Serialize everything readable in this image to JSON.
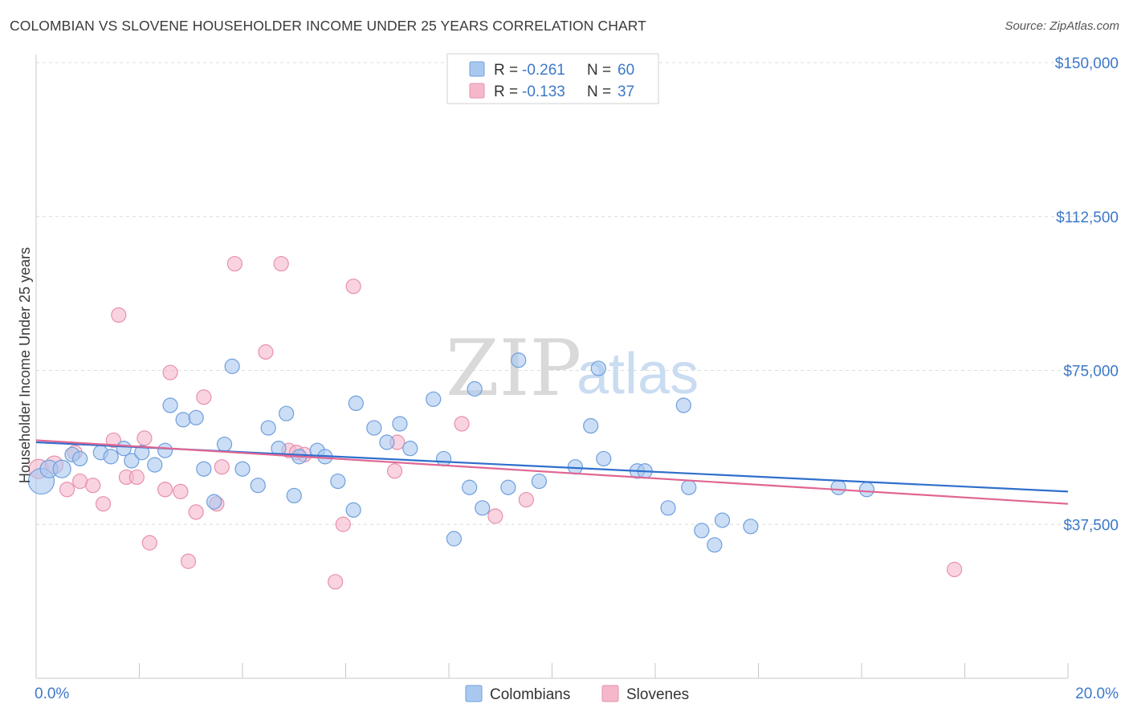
{
  "header": {
    "title": "COLOMBIAN VS SLOVENE HOUSEHOLDER INCOME UNDER 25 YEARS CORRELATION CHART",
    "source": "Source: ZipAtlas.com"
  },
  "watermark": {
    "zip": "ZIP",
    "atlas": "atlas"
  },
  "legend": {
    "rows": [
      {
        "r_label": "R =",
        "r_value": "-0.261",
        "n_label": "N =",
        "n_value": "60",
        "color": "#a9c8f0"
      },
      {
        "r_label": "R =",
        "r_value": "-0.133",
        "n_label": "N =",
        "n_value": "37",
        "color": "#f5b8cb"
      }
    ]
  },
  "bottom_legend": {
    "items": [
      "Colombians",
      "Slovenes"
    ]
  },
  "colors": {
    "blue_fill": "#a9c8f0",
    "blue_stroke": "#6f9fdc",
    "blue_line": "#2f6fcc",
    "pink_fill": "#f5b8cb",
    "pink_stroke": "#e890ab",
    "pink_line": "#e06693",
    "axis_text": "#3d78c9"
  },
  "chart_data": {
    "type": "scatter",
    "title": "COLOMBIAN VS SLOVENE HOUSEHOLDER INCOME UNDER 25 YEARS CORRELATION CHART",
    "xlabel": "",
    "ylabel": "Householder Income Under 25 years",
    "xlim": [
      0,
      20
    ],
    "ylim": [
      0,
      150000
    ],
    "x_tick_labels": [
      "0.0%",
      "20.0%"
    ],
    "y_ticks": [
      37500,
      75000,
      112500,
      150000
    ],
    "y_tick_labels": [
      "$37,500",
      "$75,000",
      "$112,500",
      "$150,000"
    ],
    "grid": true,
    "legend_position": "top-center",
    "series": [
      {
        "name": "Colombians",
        "r": -0.261,
        "n": 60,
        "trend": {
          "x": [
            0,
            20
          ],
          "y": [
            57500,
            45500
          ]
        },
        "points": [
          [
            0.1,
            48000,
            16
          ],
          [
            0.25,
            51000,
            11
          ],
          [
            0.5,
            51000,
            11
          ],
          [
            0.7,
            54500,
            9
          ],
          [
            0.85,
            53500,
            9
          ],
          [
            1.25,
            55000,
            9
          ],
          [
            1.45,
            54000,
            9
          ],
          [
            1.7,
            56000,
            9
          ],
          [
            1.85,
            53000,
            9
          ],
          [
            2.05,
            55000,
            9
          ],
          [
            2.3,
            52000,
            9
          ],
          [
            2.5,
            55500,
            9
          ],
          [
            2.6,
            66500,
            9
          ],
          [
            2.85,
            63000,
            9
          ],
          [
            3.1,
            63500,
            9
          ],
          [
            3.25,
            51000,
            9
          ],
          [
            3.45,
            43000,
            9
          ],
          [
            3.65,
            57000,
            9
          ],
          [
            3.8,
            76000,
            9
          ],
          [
            4.0,
            51000,
            9
          ],
          [
            4.3,
            47000,
            9
          ],
          [
            4.5,
            61000,
            9
          ],
          [
            4.7,
            56000,
            9
          ],
          [
            4.85,
            64500,
            9
          ],
          [
            5.0,
            44500,
            9
          ],
          [
            5.1,
            54000,
            9
          ],
          [
            5.45,
            55500,
            9
          ],
          [
            5.6,
            54000,
            9
          ],
          [
            5.85,
            48000,
            9
          ],
          [
            6.15,
            41000,
            9
          ],
          [
            6.2,
            67000,
            9
          ],
          [
            6.55,
            61000,
            9
          ],
          [
            6.8,
            57500,
            9
          ],
          [
            7.05,
            62000,
            9
          ],
          [
            7.25,
            56000,
            9
          ],
          [
            7.7,
            68000,
            9
          ],
          [
            7.9,
            53500,
            9
          ],
          [
            8.1,
            34000,
            9
          ],
          [
            8.4,
            46500,
            9
          ],
          [
            8.5,
            70500,
            9
          ],
          [
            8.65,
            41500,
            9
          ],
          [
            9.15,
            46500,
            9
          ],
          [
            9.35,
            77500,
            9
          ],
          [
            9.75,
            48000,
            9
          ],
          [
            10.45,
            51500,
            9
          ],
          [
            10.75,
            61500,
            9
          ],
          [
            10.9,
            75500,
            9
          ],
          [
            11.0,
            53500,
            9
          ],
          [
            11.65,
            50500,
            9
          ],
          [
            11.8,
            50500,
            9
          ],
          [
            12.25,
            41500,
            9
          ],
          [
            12.55,
            66500,
            9
          ],
          [
            12.65,
            46500,
            9
          ],
          [
            12.9,
            36000,
            9
          ],
          [
            13.15,
            32500,
            9
          ],
          [
            13.3,
            38500,
            9
          ],
          [
            13.85,
            37000,
            9
          ],
          [
            15.55,
            46500,
            9
          ],
          [
            16.1,
            46000,
            9
          ]
        ]
      },
      {
        "name": "Slovenes",
        "r": -0.133,
        "n": 37,
        "trend": {
          "x": [
            0,
            20
          ],
          "y": [
            58000,
            42500
          ]
        },
        "points": [
          [
            0.05,
            51000,
            12
          ],
          [
            0.35,
            52000,
            11
          ],
          [
            0.6,
            46000,
            9
          ],
          [
            0.75,
            55000,
            9
          ],
          [
            0.85,
            48000,
            9
          ],
          [
            1.1,
            47000,
            9
          ],
          [
            1.3,
            42500,
            9
          ],
          [
            1.5,
            58000,
            9
          ],
          [
            1.6,
            88500,
            9
          ],
          [
            1.75,
            49000,
            9
          ],
          [
            1.95,
            49000,
            9
          ],
          [
            2.1,
            58500,
            9
          ],
          [
            2.2,
            33000,
            9
          ],
          [
            2.5,
            46000,
            9
          ],
          [
            2.6,
            74500,
            9
          ],
          [
            2.8,
            45500,
            9
          ],
          [
            2.95,
            28500,
            9
          ],
          [
            3.1,
            40500,
            9
          ],
          [
            3.25,
            68500,
            9
          ],
          [
            3.5,
            42500,
            9
          ],
          [
            3.6,
            51500,
            9
          ],
          [
            3.85,
            101000,
            9
          ],
          [
            4.45,
            79500,
            9
          ],
          [
            4.75,
            101000,
            9
          ],
          [
            4.9,
            55500,
            9
          ],
          [
            5.05,
            55000,
            9
          ],
          [
            5.2,
            54500,
            9
          ],
          [
            5.8,
            23500,
            9
          ],
          [
            5.95,
            37500,
            9
          ],
          [
            6.15,
            95500,
            9
          ],
          [
            6.95,
            50500,
            9
          ],
          [
            7.0,
            57500,
            9
          ],
          [
            8.25,
            62000,
            9
          ],
          [
            8.9,
            39500,
            9
          ],
          [
            9.5,
            43500,
            9
          ],
          [
            17.8,
            26500,
            9
          ]
        ]
      }
    ]
  }
}
